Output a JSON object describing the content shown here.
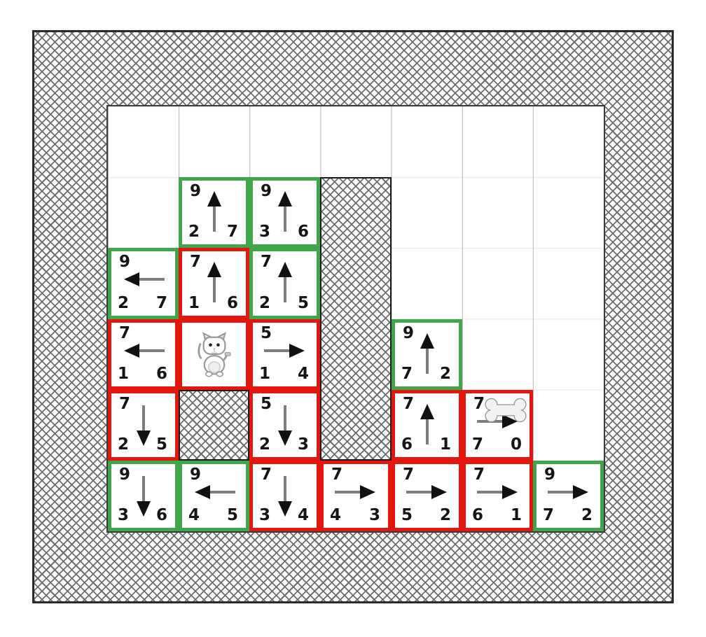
{
  "board": {
    "columns": 7,
    "rows": 6,
    "colors": {
      "open_border": "#3fa64a",
      "closed_border": "#e4170e",
      "wall_outline": "#1b1b1b",
      "outer_outline": "#2b2b2b",
      "arrow_shaft": "#7d7d7d",
      "arrow_head": "#111111",
      "score_text": "#151515"
    },
    "icons": {
      "agent": "cat-icon",
      "goal": "bone-icon",
      "wall_texture": "crosshatch"
    },
    "walls": [
      {
        "col": 3,
        "row": 1,
        "cols": 1,
        "rows": 4
      },
      {
        "col": 1,
        "row": 4,
        "cols": 1,
        "rows": 1
      }
    ],
    "cells": [
      {
        "col": 1,
        "row": 1,
        "state": "open",
        "f": "9",
        "g": "2",
        "h": "7",
        "dir": "up"
      },
      {
        "col": 2,
        "row": 1,
        "state": "open",
        "f": "9",
        "g": "3",
        "h": "6",
        "dir": "up"
      },
      {
        "col": 0,
        "row": 2,
        "state": "open",
        "f": "9",
        "g": "2",
        "h": "7",
        "dir": "left"
      },
      {
        "col": 1,
        "row": 2,
        "state": "closed",
        "f": "7",
        "g": "1",
        "h": "6",
        "dir": "up"
      },
      {
        "col": 2,
        "row": 2,
        "state": "open",
        "f": "7",
        "g": "2",
        "h": "5",
        "dir": "up"
      },
      {
        "col": 0,
        "row": 3,
        "state": "closed",
        "f": "7",
        "g": "1",
        "h": "6",
        "dir": "left"
      },
      {
        "col": 1,
        "row": 3,
        "state": "closed",
        "icon": "cat"
      },
      {
        "col": 2,
        "row": 3,
        "state": "closed",
        "f": "5",
        "g": "1",
        "h": "4",
        "dir": "right"
      },
      {
        "col": 4,
        "row": 3,
        "state": "open",
        "f": "9",
        "g": "7",
        "h": "2",
        "dir": "up"
      },
      {
        "col": 0,
        "row": 4,
        "state": "closed",
        "f": "7",
        "g": "2",
        "h": "5",
        "dir": "down"
      },
      {
        "col": 2,
        "row": 4,
        "state": "closed",
        "f": "5",
        "g": "2",
        "h": "3",
        "dir": "down"
      },
      {
        "col": 4,
        "row": 4,
        "state": "closed",
        "f": "7",
        "g": "6",
        "h": "1",
        "dir": "up"
      },
      {
        "col": 5,
        "row": 4,
        "state": "closed",
        "f": "7",
        "g": "7",
        "h": "0",
        "dir": "right",
        "icon": "bone"
      },
      {
        "col": 0,
        "row": 5,
        "state": "open",
        "f": "9",
        "g": "3",
        "h": "6",
        "dir": "down"
      },
      {
        "col": 1,
        "row": 5,
        "state": "open",
        "f": "9",
        "g": "4",
        "h": "5",
        "dir": "left"
      },
      {
        "col": 2,
        "row": 5,
        "state": "closed",
        "f": "7",
        "g": "3",
        "h": "4",
        "dir": "down"
      },
      {
        "col": 3,
        "row": 5,
        "state": "closed",
        "f": "7",
        "g": "4",
        "h": "3",
        "dir": "right"
      },
      {
        "col": 4,
        "row": 5,
        "state": "closed",
        "f": "7",
        "g": "5",
        "h": "2",
        "dir": "right"
      },
      {
        "col": 5,
        "row": 5,
        "state": "closed",
        "f": "7",
        "g": "6",
        "h": "1",
        "dir": "right"
      },
      {
        "col": 6,
        "row": 5,
        "state": "open",
        "f": "9",
        "g": "7",
        "h": "2",
        "dir": "right"
      }
    ]
  }
}
